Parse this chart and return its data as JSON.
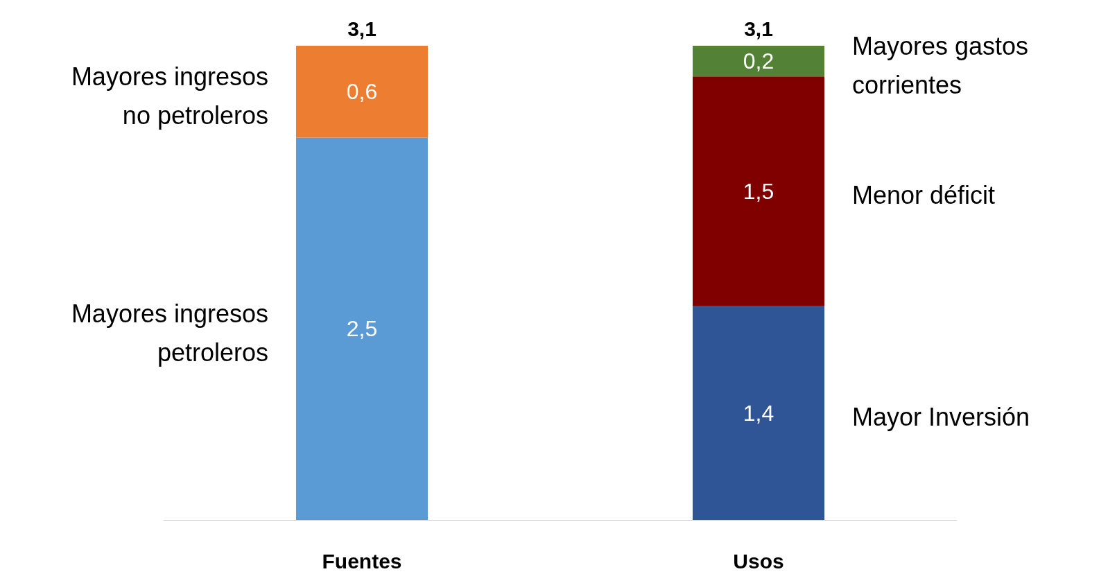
{
  "chart_data": {
    "type": "bar",
    "stacked": true,
    "categories": [
      "Fuentes",
      "Usos"
    ],
    "ylim": [
      0,
      3.1
    ],
    "tick_labels": "x",
    "grid": false,
    "legend": false,
    "series": [
      {
        "name": "Mayores ingresos petroleros",
        "color": "#5b9bd5",
        "values": [
          2.5,
          null
        ],
        "value_labels": [
          "2,5",
          null
        ]
      },
      {
        "name": "Mayores ingresos no petroleros",
        "color": "#ed7d31",
        "values": [
          0.6,
          null
        ],
        "value_labels": [
          "0,6",
          null
        ]
      },
      {
        "name": "Mayor Inversión",
        "color": "#2f5597",
        "values": [
          null,
          1.4
        ],
        "value_labels": [
          null,
          "1,4"
        ]
      },
      {
        "name": "Menor déficit",
        "color": "#800000",
        "values": [
          null,
          1.5
        ],
        "value_labels": [
          null,
          "1,5"
        ]
      },
      {
        "name": "Mayores gastos corrientes",
        "color": "#538135",
        "values": [
          null,
          0.2
        ],
        "value_labels": [
          null,
          "0,2"
        ]
      }
    ],
    "totals": [
      "3,1",
      "3,1"
    ]
  }
}
